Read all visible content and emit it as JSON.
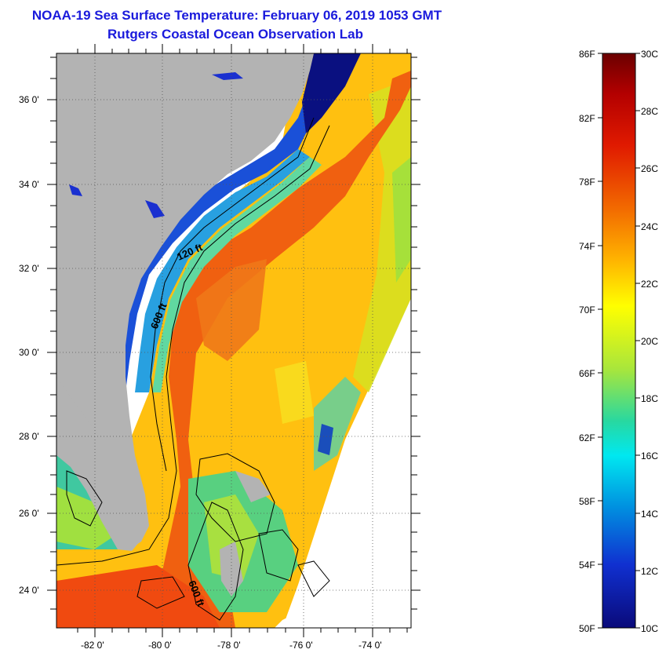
{
  "header": {
    "title": "NOAA-19 Sea Surface Temperature:  February 06, 2019 1053 GMT",
    "subtitle": "Rutgers Coastal Ocean Observation Lab"
  },
  "map": {
    "lat_labels": [
      "36 0'",
      "34 0'",
      "32 0'",
      "30 0'",
      "28 0'",
      "26 0'",
      "24 0'"
    ],
    "lon_labels": [
      "-82 0'",
      "-80 0'",
      "-78 0'",
      "-76 0'",
      "-74 0'"
    ],
    "contour_labels": [
      "120 ft",
      "600 ft",
      "600 ft"
    ]
  },
  "colorbar": {
    "fahrenheit_labels": [
      "86F",
      "82F",
      "78F",
      "74F",
      "70F",
      "66F",
      "62F",
      "58F",
      "54F",
      "50F"
    ],
    "celsius_labels": [
      "30C",
      "28C",
      "26C",
      "24C",
      "22C",
      "20C",
      "18C",
      "16C",
      "14C",
      "12C",
      "10C"
    ]
  },
  "colors": {
    "title": "#1a1adc",
    "land": "#b3b3b3",
    "warm": "#e8400a",
    "cool": "#1010c0"
  }
}
